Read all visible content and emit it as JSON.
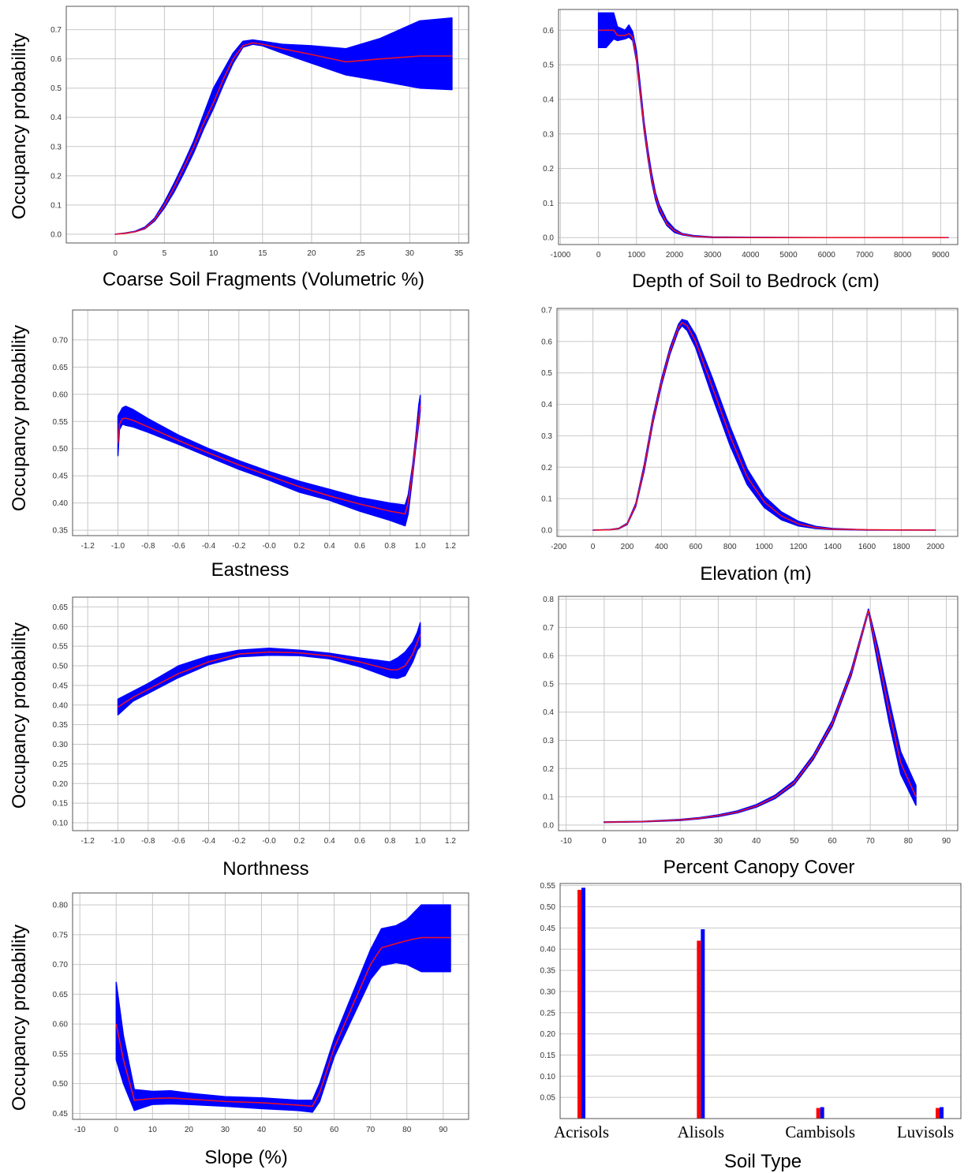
{
  "colors": {
    "band": "#0000ff",
    "mean": "#e8102a",
    "bar_mean": "#ff0000",
    "bar_band": "#0000ff",
    "grid": "#c8c8c8"
  },
  "chart_data": [
    {
      "id": "coarse",
      "type": "area",
      "xlabel": "Coarse Soil Fragments (Volumetric %)",
      "ylabel": "Occupancy probability",
      "xlim": [
        -5,
        36
      ],
      "ylim": [
        -0.03,
        0.78
      ],
      "xticks": [
        0,
        5,
        10,
        15,
        20,
        25,
        30,
        35
      ],
      "yticks": [
        0.0,
        0.1,
        0.2,
        0.3,
        0.4,
        0.5,
        0.6,
        0.7
      ],
      "ydec": 1,
      "x": [
        0,
        1,
        2,
        3,
        4,
        5,
        6,
        7,
        8,
        9,
        10,
        11,
        12,
        13,
        14,
        15,
        17,
        20,
        23.5,
        27,
        31,
        34.3
      ],
      "mean": [
        0,
        0.003,
        0.008,
        0.02,
        0.05,
        0.1,
        0.16,
        0.23,
        0.3,
        0.38,
        0.45,
        0.53,
        0.6,
        0.645,
        0.655,
        0.65,
        0.635,
        0.615,
        0.59,
        0.6,
        0.61,
        0.61
      ],
      "lower": [
        0,
        0.003,
        0.008,
        0.018,
        0.045,
        0.09,
        0.145,
        0.21,
        0.28,
        0.36,
        0.43,
        0.51,
        0.585,
        0.64,
        0.65,
        0.645,
        0.62,
        0.585,
        0.545,
        0.525,
        0.5,
        0.495
      ],
      "upper": [
        0,
        0.004,
        0.01,
        0.024,
        0.055,
        0.11,
        0.175,
        0.245,
        0.32,
        0.41,
        0.5,
        0.56,
        0.62,
        0.66,
        0.665,
        0.66,
        0.65,
        0.645,
        0.635,
        0.67,
        0.73,
        0.74
      ]
    },
    {
      "id": "depth",
      "type": "area",
      "xlabel": "Depth of Soil to Bedrock (cm)",
      "ylabel": "",
      "xlim": [
        -1050,
        9450
      ],
      "ylim": [
        -0.02,
        0.66
      ],
      "xticks": [
        -1000,
        0,
        1000,
        2000,
        3000,
        4000,
        5000,
        6000,
        7000,
        8000,
        9000
      ],
      "yticks": [
        0.0,
        0.1,
        0.2,
        0.3,
        0.4,
        0.5,
        0.6
      ],
      "ydec": 1,
      "x": [
        0,
        200,
        400,
        500,
        700,
        800,
        900,
        1000,
        1100,
        1200,
        1300,
        1400,
        1500,
        1600,
        1800,
        2000,
        2200,
        2500,
        3000,
        4000,
        6000,
        9200
      ],
      "mean": [
        0.6,
        0.6,
        0.6,
        0.585,
        0.585,
        0.59,
        0.58,
        0.52,
        0.42,
        0.32,
        0.24,
        0.17,
        0.12,
        0.085,
        0.04,
        0.02,
        0.01,
        0.004,
        0.001,
        0,
        0,
        0
      ],
      "lower": [
        0.55,
        0.55,
        0.575,
        0.57,
        0.575,
        0.58,
        0.57,
        0.51,
        0.41,
        0.31,
        0.23,
        0.16,
        0.11,
        0.075,
        0.035,
        0.015,
        0.008,
        0.003,
        0,
        0,
        0,
        0
      ],
      "upper": [
        0.65,
        0.65,
        0.65,
        0.61,
        0.6,
        0.615,
        0.595,
        0.54,
        0.44,
        0.335,
        0.255,
        0.185,
        0.13,
        0.095,
        0.05,
        0.025,
        0.012,
        0.006,
        0.002,
        0.001,
        0,
        0
      ]
    },
    {
      "id": "eastness",
      "type": "area",
      "xlabel": "Eastness",
      "ylabel": "Occupancy probability",
      "xlim": [
        -1.3,
        1.32
      ],
      "ylim": [
        0.34,
        0.755
      ],
      "xticks": [
        -1.2,
        -1.0,
        -0.8,
        -0.6,
        -0.4,
        -0.2,
        0.0,
        0.2,
        0.4,
        0.6,
        0.8,
        1.0,
        1.2
      ],
      "xlabels": [
        "-1.2",
        "-1.0",
        "-0.8",
        "-0.6",
        "-0.4",
        "-0.2",
        "-0.0",
        "0.2",
        "0.4",
        "0.6",
        "0.8",
        "1.0",
        "1.2"
      ],
      "yticks": [
        0.35,
        0.4,
        0.45,
        0.5,
        0.55,
        0.6,
        0.65,
        0.7
      ],
      "ydec": 2,
      "x": [
        -1.0,
        -0.99,
        -0.97,
        -0.95,
        -0.9,
        -0.8,
        -0.6,
        -0.4,
        -0.2,
        0.0,
        0.2,
        0.4,
        0.6,
        0.8,
        0.9,
        0.92,
        0.95,
        0.97,
        0.99,
        1.0
      ],
      "mean": [
        0.51,
        0.545,
        0.555,
        0.556,
        0.552,
        0.54,
        0.515,
        0.492,
        0.47,
        0.45,
        0.43,
        0.413,
        0.398,
        0.385,
        0.38,
        0.4,
        0.46,
        0.51,
        0.555,
        0.58
      ],
      "lower": [
        0.487,
        0.535,
        0.545,
        0.543,
        0.54,
        0.53,
        0.508,
        0.485,
        0.462,
        0.442,
        0.42,
        0.405,
        0.385,
        0.368,
        0.358,
        0.38,
        0.45,
        0.5,
        0.545,
        0.57
      ],
      "upper": [
        0.56,
        0.565,
        0.575,
        0.578,
        0.572,
        0.555,
        0.525,
        0.5,
        0.478,
        0.458,
        0.44,
        0.425,
        0.41,
        0.4,
        0.396,
        0.415,
        0.47,
        0.52,
        0.58,
        0.598
      ]
    },
    {
      "id": "elevation",
      "type": "area",
      "xlabel": "Elevation (m)",
      "ylabel": "",
      "xlim": [
        -210,
        2130
      ],
      "ylim": [
        -0.02,
        0.705
      ],
      "xticks": [
        -200,
        0,
        200,
        400,
        600,
        800,
        1000,
        1200,
        1400,
        1600,
        1800,
        2000
      ],
      "yticks": [
        0.0,
        0.1,
        0.2,
        0.3,
        0.4,
        0.5,
        0.6,
        0.7
      ],
      "ydec": 1,
      "x": [
        0,
        100,
        150,
        200,
        250,
        300,
        350,
        400,
        450,
        500,
        520,
        550,
        600,
        700,
        800,
        900,
        1000,
        1100,
        1200,
        1300,
        1400,
        1600,
        2000
      ],
      "mean": [
        0,
        0.001,
        0.005,
        0.02,
        0.08,
        0.2,
        0.35,
        0.47,
        0.57,
        0.645,
        0.66,
        0.65,
        0.6,
        0.45,
        0.3,
        0.17,
        0.09,
        0.045,
        0.02,
        0.008,
        0.003,
        0.001,
        0
      ],
      "lower": [
        0,
        0.001,
        0.004,
        0.018,
        0.075,
        0.19,
        0.34,
        0.46,
        0.56,
        0.635,
        0.65,
        0.635,
        0.58,
        0.42,
        0.27,
        0.145,
        0.072,
        0.033,
        0.013,
        0.005,
        0.002,
        0,
        0
      ],
      "upper": [
        0,
        0.002,
        0.006,
        0.022,
        0.085,
        0.21,
        0.36,
        0.48,
        0.58,
        0.655,
        0.67,
        0.665,
        0.62,
        0.48,
        0.33,
        0.195,
        0.108,
        0.058,
        0.028,
        0.012,
        0.005,
        0.001,
        0
      ]
    },
    {
      "id": "northness",
      "type": "area",
      "xlabel": "Northness",
      "ylabel": "Occupancy probability",
      "xlim": [
        -1.3,
        1.32
      ],
      "ylim": [
        0.08,
        0.675
      ],
      "xticks": [
        -1.2,
        -1.0,
        -0.8,
        -0.6,
        -0.4,
        -0.2,
        0.0,
        0.2,
        0.4,
        0.6,
        0.8,
        1.0,
        1.2
      ],
      "xlabels": [
        "-1.2",
        "-1.0",
        "-0.8",
        "-0.6",
        "-0.4",
        "-0.2",
        "-0.0",
        "0.2",
        "0.4",
        "0.6",
        "0.8",
        "1.0",
        "1.2"
      ],
      "yticks": [
        0.1,
        0.15,
        0.2,
        0.25,
        0.3,
        0.35,
        0.4,
        0.45,
        0.5,
        0.55,
        0.6,
        0.65
      ],
      "ydec": 2,
      "x": [
        -1.0,
        -0.9,
        -0.8,
        -0.6,
        -0.4,
        -0.2,
        0.0,
        0.2,
        0.4,
        0.6,
        0.8,
        0.85,
        0.9,
        0.95,
        0.98,
        1.0
      ],
      "mean": [
        0.395,
        0.42,
        0.44,
        0.48,
        0.51,
        0.53,
        0.535,
        0.533,
        0.525,
        0.51,
        0.49,
        0.49,
        0.5,
        0.53,
        0.56,
        0.58
      ],
      "lower": [
        0.375,
        0.41,
        0.43,
        0.47,
        0.503,
        0.523,
        0.527,
        0.526,
        0.518,
        0.498,
        0.47,
        0.468,
        0.475,
        0.51,
        0.54,
        0.55
      ],
      "upper": [
        0.415,
        0.435,
        0.455,
        0.5,
        0.525,
        0.54,
        0.545,
        0.54,
        0.532,
        0.52,
        0.51,
        0.52,
        0.535,
        0.56,
        0.585,
        0.61
      ]
    },
    {
      "id": "canopy",
      "type": "area",
      "xlabel": "Percent Canopy Cover",
      "ylabel": "",
      "xlim": [
        -12,
        93
      ],
      "ylim": [
        -0.02,
        0.81
      ],
      "xticks": [
        -10,
        0,
        10,
        20,
        30,
        40,
        50,
        60,
        70,
        80,
        90
      ],
      "yticks": [
        0.0,
        0.1,
        0.2,
        0.3,
        0.4,
        0.5,
        0.6,
        0.7,
        0.8
      ],
      "ydec": 1,
      "x": [
        0,
        10,
        20,
        25,
        30,
        35,
        40,
        45,
        50,
        55,
        60,
        65,
        69.5,
        72,
        75,
        78,
        82
      ],
      "mean": [
        0.01,
        0.012,
        0.018,
        0.024,
        0.033,
        0.046,
        0.067,
        0.1,
        0.15,
        0.24,
        0.36,
        0.54,
        0.76,
        0.6,
        0.4,
        0.22,
        0.1
      ],
      "lower": [
        0.009,
        0.011,
        0.016,
        0.022,
        0.03,
        0.043,
        0.063,
        0.094,
        0.143,
        0.232,
        0.35,
        0.53,
        0.755,
        0.57,
        0.36,
        0.18,
        0.07
      ],
      "upper": [
        0.011,
        0.013,
        0.02,
        0.026,
        0.036,
        0.05,
        0.072,
        0.106,
        0.158,
        0.248,
        0.37,
        0.55,
        0.765,
        0.63,
        0.44,
        0.26,
        0.14
      ]
    },
    {
      "id": "slope",
      "type": "area",
      "xlabel": "Slope (%)",
      "ylabel": "Occupancy probability",
      "xlim": [
        -12,
        97
      ],
      "ylim": [
        0.44,
        0.82
      ],
      "xticks": [
        -10,
        0,
        10,
        20,
        30,
        40,
        50,
        60,
        70,
        80,
        90
      ],
      "yticks": [
        0.45,
        0.5,
        0.55,
        0.6,
        0.65,
        0.7,
        0.75,
        0.8
      ],
      "ydec": 2,
      "x": [
        0,
        2,
        5,
        10,
        15,
        20,
        30,
        40,
        50,
        54,
        56,
        60,
        65,
        70,
        73,
        77,
        80,
        84,
        92
      ],
      "mean": [
        0.6,
        0.54,
        0.472,
        0.475,
        0.476,
        0.474,
        0.47,
        0.468,
        0.464,
        0.462,
        0.485,
        0.56,
        0.63,
        0.7,
        0.728,
        0.735,
        0.74,
        0.745,
        0.745
      ],
      "lower": [
        0.54,
        0.5,
        0.455,
        0.465,
        0.466,
        0.465,
        0.462,
        0.458,
        0.455,
        0.452,
        0.47,
        0.545,
        0.61,
        0.675,
        0.698,
        0.703,
        0.7,
        0.688,
        0.688
      ],
      "upper": [
        0.67,
        0.58,
        0.49,
        0.487,
        0.488,
        0.484,
        0.478,
        0.476,
        0.472,
        0.472,
        0.5,
        0.575,
        0.65,
        0.725,
        0.76,
        0.765,
        0.775,
        0.8,
        0.8
      ]
    },
    {
      "id": "soil",
      "type": "bar",
      "xlabel": "Soil Type",
      "ylabel": "",
      "ylim": [
        0,
        0.555
      ],
      "yticks": [
        0.05,
        0.1,
        0.15,
        0.2,
        0.25,
        0.3,
        0.35,
        0.4,
        0.45,
        0.5,
        0.55
      ],
      "ydec": 2,
      "categories": [
        "Acrisols",
        "Alisols",
        "Cambisols",
        "Luvisols"
      ],
      "mean": [
        0.54,
        0.42,
        0.025,
        0.025
      ],
      "upper": [
        0.545,
        0.447,
        0.027,
        0.027
      ]
    }
  ]
}
